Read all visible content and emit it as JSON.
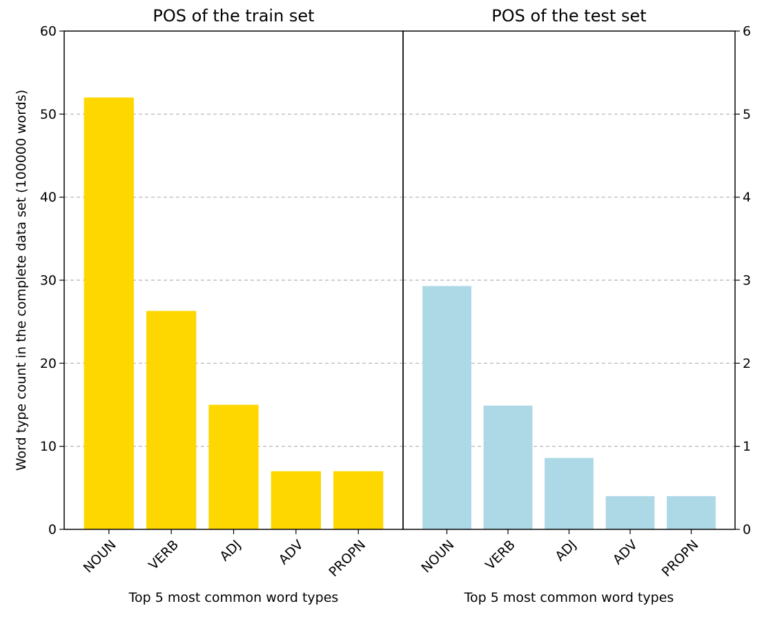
{
  "chart_data": [
    {
      "type": "bar",
      "title": "POS of the train set",
      "xlabel": "Top 5 most common word types",
      "ylabel": "Word type count in the complete data set (100000 words)",
      "categories": [
        "NOUN",
        "VERB",
        "ADJ",
        "ADV",
        "PROPN"
      ],
      "values": [
        52,
        26.3,
        15,
        7,
        7
      ],
      "ylim": [
        0,
        60
      ],
      "yticks": [
        "0",
        "10",
        "20",
        "30",
        "40",
        "50",
        "60"
      ],
      "y_axis_side": "left",
      "color": "#FFD700",
      "grid": "horizontal dashed"
    },
    {
      "type": "bar",
      "title": "POS of the test set",
      "xlabel": "Top 5 most common word types",
      "ylabel": "",
      "categories": [
        "NOUN",
        "VERB",
        "ADJ",
        "ADV",
        "PROPN"
      ],
      "values": [
        2.93,
        1.49,
        0.86,
        0.4,
        0.4
      ],
      "ylim": [
        0,
        6
      ],
      "yticks": [
        "0",
        "1",
        "2",
        "3",
        "4",
        "5",
        "6"
      ],
      "y_axis_side": "right",
      "color": "#ADD8E6",
      "grid": "horizontal dashed"
    }
  ]
}
